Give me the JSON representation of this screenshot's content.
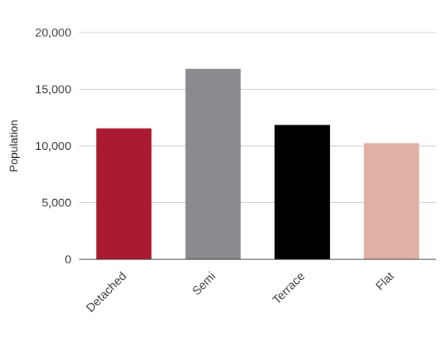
{
  "chart_data": {
    "type": "bar",
    "title": "",
    "xlabel": "",
    "ylabel": "Population",
    "categories": [
      "Detached",
      "Semi",
      "Terrace",
      "Flat"
    ],
    "values": [
      11550,
      16800,
      11850,
      10250
    ],
    "colors": [
      "#a91a30",
      "#8a8b8f",
      "#000000",
      "#e0b0a5"
    ],
    "ylim": [
      0,
      20000
    ],
    "yticks": [
      0,
      5000,
      10000,
      15000,
      20000
    ],
    "ytick_labels": [
      "0",
      "5,000",
      "10,000",
      "15,000",
      "20,000"
    ],
    "grid": true,
    "legend": "none"
  }
}
